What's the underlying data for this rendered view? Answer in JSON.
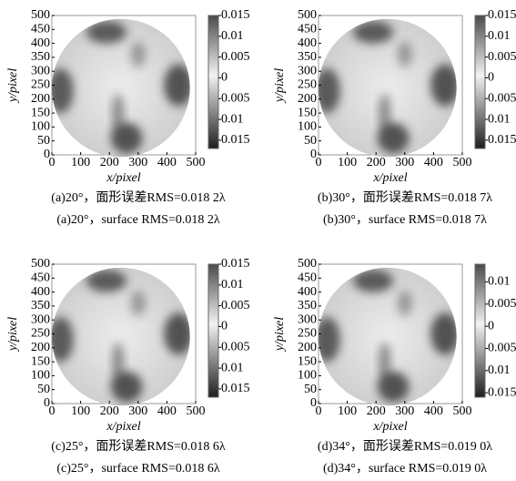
{
  "chart_data": [
    {
      "type": "heatmap",
      "xlabel": "x/pixel",
      "ylabel": "y/pixel",
      "xlim": [
        0,
        500
      ],
      "ylim": [
        0,
        500
      ],
      "xticks": [
        0,
        100,
        200,
        300,
        400,
        500
      ],
      "yticks": [
        0,
        50,
        100,
        150,
        200,
        250,
        300,
        350,
        400,
        450,
        500
      ],
      "colorbar": {
        "lim": [
          -0.017,
          0.015
        ],
        "ticks": [
          0.015,
          0.01,
          0.005,
          0,
          {
            "value": -0.005,
            "label": "0.005"
          },
          {
            "value": -0.01,
            "label": "0.01"
          },
          {
            "value": -0.015,
            "label": "0.015"
          }
        ]
      },
      "caption_cn": "(a)20°，面形误差RMS=0.018 2λ",
      "caption_en": "(a)20°，surface RMS=0.018 2λ"
    },
    {
      "type": "heatmap",
      "xlabel": "x/pixel",
      "ylabel": "y/pixel",
      "xlim": [
        0,
        500
      ],
      "ylim": [
        0,
        500
      ],
      "xticks": [
        0,
        100,
        200,
        300,
        400,
        500
      ],
      "yticks": [
        0,
        50,
        100,
        150,
        200,
        250,
        300,
        350,
        400,
        450,
        500
      ],
      "colorbar": {
        "lim": [
          -0.017,
          0.015
        ],
        "ticks": [
          0.015,
          0.01,
          0.005,
          0,
          {
            "value": -0.005,
            "label": "0.005"
          },
          {
            "value": -0.01,
            "label": "0.01"
          },
          {
            "value": -0.015,
            "label": "0.015"
          }
        ]
      },
      "caption_cn": "(b)30°，面形误差RMS=0.018 7λ",
      "caption_en": "(b)30°，surface RMS=0.018 7λ"
    },
    {
      "type": "heatmap",
      "xlabel": "x/pixel",
      "ylabel": "y/pixel",
      "xlim": [
        0,
        500
      ],
      "ylim": [
        0,
        500
      ],
      "xticks": [
        0,
        100,
        200,
        300,
        400,
        500
      ],
      "yticks": [
        0,
        50,
        100,
        150,
        200,
        250,
        300,
        350,
        400,
        450,
        500
      ],
      "colorbar": {
        "lim": [
          -0.017,
          0.015
        ],
        "ticks": [
          0.015,
          0.01,
          0.005,
          0,
          {
            "value": -0.005,
            "label": "0.005"
          },
          {
            "value": -0.01,
            "label": "0.01"
          },
          {
            "value": -0.015,
            "label": "0.015"
          }
        ]
      },
      "caption_cn": "(c)25°，面形误差RMS=0.018 6λ",
      "caption_en": "(c)25°，surface RMS=0.018 6λ"
    },
    {
      "type": "heatmap",
      "xlabel": "x/pixel",
      "ylabel": "y/pixel",
      "xlim": [
        0,
        500
      ],
      "ylim": [
        0,
        500
      ],
      "xticks": [
        0,
        100,
        200,
        300,
        400,
        500
      ],
      "yticks": [
        0,
        50,
        100,
        150,
        200,
        250,
        300,
        350,
        400,
        450,
        500
      ],
      "colorbar": {
        "lim": [
          -0.016,
          0.014
        ],
        "ticks": [
          0.01,
          0.005,
          0,
          {
            "value": -0.005,
            "label": "0.005"
          },
          {
            "value": -0.01,
            "label": "0.01"
          },
          {
            "value": -0.015,
            "label": "0.015"
          }
        ]
      },
      "caption_cn": "(d)34°，面形误差RMS=0.019 0λ",
      "caption_en": "(d)34°，surface RMS=0.019 0λ"
    }
  ]
}
